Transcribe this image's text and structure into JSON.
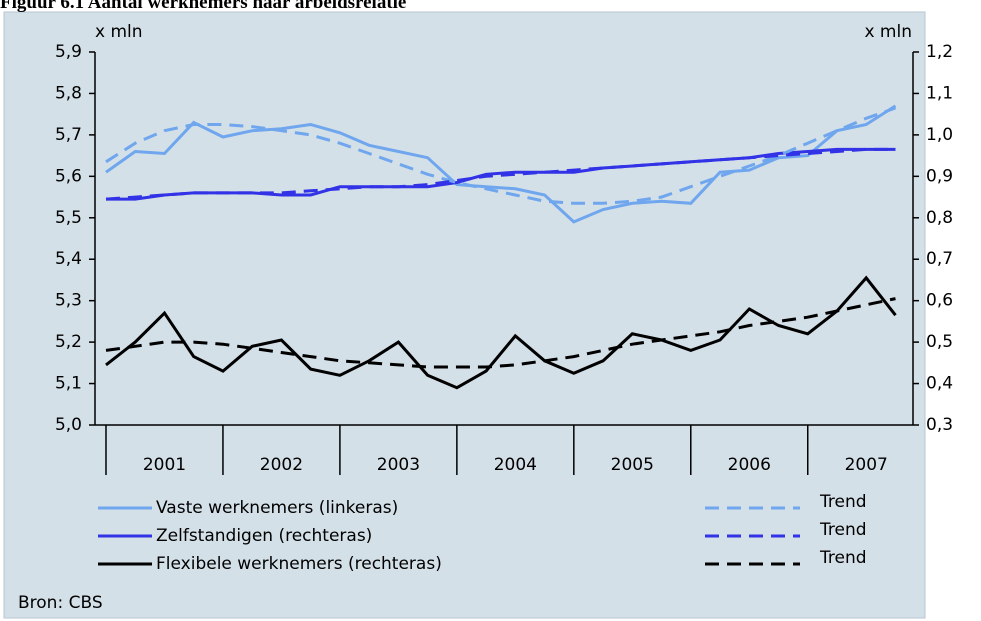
{
  "chart_data": {
    "type": "line",
    "title": "Figuur 6.1 Aantal werknemers naar arbeidsrelatie",
    "ylabel": "x mln",
    "y2label": "x mln",
    "source": "Bron: CBS",
    "x": [
      2001,
      2001.25,
      2001.5,
      2001.75,
      2002,
      2002.25,
      2002.5,
      2002.75,
      2003,
      2003.25,
      2003.5,
      2003.75,
      2004,
      2004.25,
      2004.5,
      2004.75,
      2005,
      2005.25,
      2005.5,
      2005.75,
      2006,
      2006.25,
      2006.5,
      2006.75,
      2007,
      2007.25,
      2007.5,
      2007.75
    ],
    "xlim": [
      2000.906,
      2007.9
    ],
    "xticks": [
      2001,
      2002,
      2003,
      2004,
      2005,
      2006,
      2007
    ],
    "ylim": [
      5.0,
      5.9
    ],
    "yticks": [
      {
        "value": 5.0,
        "label": "5,0"
      },
      {
        "value": 5.1,
        "label": "5,1"
      },
      {
        "value": 5.2,
        "label": "5,2"
      },
      {
        "value": 5.3,
        "label": "5,3"
      },
      {
        "value": 5.4,
        "label": "5,4"
      },
      {
        "value": 5.5,
        "label": "5,5"
      },
      {
        "value": 5.6,
        "label": "5,6"
      },
      {
        "value": 5.7,
        "label": "5,7"
      },
      {
        "value": 5.8,
        "label": "5,8"
      },
      {
        "value": 5.9,
        "label": "5,9"
      }
    ],
    "y2lim": [
      0.3,
      1.2
    ],
    "y2ticks": [
      {
        "value": 0.3,
        "label": "0,3"
      },
      {
        "value": 0.4,
        "label": "0,4"
      },
      {
        "value": 0.5,
        "label": "0,5"
      },
      {
        "value": 0.6,
        "label": "0,6"
      },
      {
        "value": 0.7,
        "label": "0,7"
      },
      {
        "value": 0.8,
        "label": "0,8"
      },
      {
        "value": 0.9,
        "label": "0,9"
      },
      {
        "value": 1.0,
        "label": "1,0"
      },
      {
        "value": 1.1,
        "label": "1,1"
      },
      {
        "value": 1.2,
        "label": "1,2"
      }
    ],
    "series": [
      {
        "name": "Vaste werknemers (linkeras)",
        "color": "#6fa6ee",
        "dashed": false,
        "values": [
          5.61,
          5.66,
          5.655,
          5.73,
          5.695,
          5.71,
          5.715,
          5.725,
          5.705,
          5.675,
          5.66,
          5.645,
          5.58,
          5.575,
          5.57,
          5.555,
          5.49,
          5.52,
          5.535,
          5.54,
          5.535,
          5.61,
          5.615,
          5.645,
          5.65,
          5.71,
          5.725,
          5.77
        ]
      },
      {
        "name": "Zelfstandigen (rechteras)",
        "color": "#3232e6",
        "dashed": false,
        "axis": "y2",
        "values": [
          0.845,
          0.845,
          0.855,
          0.86,
          0.86,
          0.86,
          0.855,
          0.855,
          0.875,
          0.875,
          0.875,
          0.875,
          0.885,
          0.905,
          0.91,
          0.91,
          0.91,
          0.92,
          0.925,
          0.93,
          0.935,
          0.94,
          0.945,
          0.955,
          0.96,
          0.965,
          0.965,
          0.965
        ]
      },
      {
        "name": "Flexibele werknemers (rechteras)",
        "color": "#000000",
        "dashed": false,
        "axis": "y2",
        "values": [
          0.445,
          0.5,
          0.57,
          0.465,
          0.43,
          0.49,
          0.505,
          0.435,
          0.42,
          0.455,
          0.5,
          0.42,
          0.39,
          0.43,
          0.515,
          0.455,
          0.425,
          0.455,
          0.52,
          0.505,
          0.48,
          0.505,
          0.58,
          0.54,
          0.52,
          0.575,
          0.655,
          0.565
        ]
      },
      {
        "name": "Trend",
        "color": "#6fa6ee",
        "dashed": true,
        "values": [
          5.635,
          5.68,
          5.71,
          5.725,
          5.725,
          5.72,
          5.71,
          5.7,
          5.68,
          5.655,
          5.63,
          5.605,
          5.585,
          5.57,
          5.555,
          5.54,
          5.535,
          5.535,
          5.54,
          5.55,
          5.575,
          5.6,
          5.625,
          5.65,
          5.68,
          5.71,
          5.74,
          5.765
        ]
      },
      {
        "name": "Trend",
        "color": "#3232e6",
        "dashed": true,
        "axis": "y2",
        "values": [
          0.845,
          0.85,
          0.855,
          0.86,
          0.86,
          0.86,
          0.86,
          0.865,
          0.87,
          0.875,
          0.875,
          0.88,
          0.89,
          0.9,
          0.905,
          0.91,
          0.915,
          0.92,
          0.925,
          0.93,
          0.935,
          0.94,
          0.945,
          0.95,
          0.955,
          0.96,
          0.965,
          0.965
        ]
      },
      {
        "name": "Trend",
        "color": "#000000",
        "dashed": true,
        "axis": "y2",
        "values": [
          0.48,
          0.49,
          0.5,
          0.5,
          0.495,
          0.485,
          0.475,
          0.465,
          0.455,
          0.45,
          0.445,
          0.44,
          0.44,
          0.44,
          0.445,
          0.455,
          0.465,
          0.48,
          0.495,
          0.505,
          0.515,
          0.525,
          0.54,
          0.55,
          0.56,
          0.575,
          0.59,
          0.605
        ]
      }
    ]
  }
}
